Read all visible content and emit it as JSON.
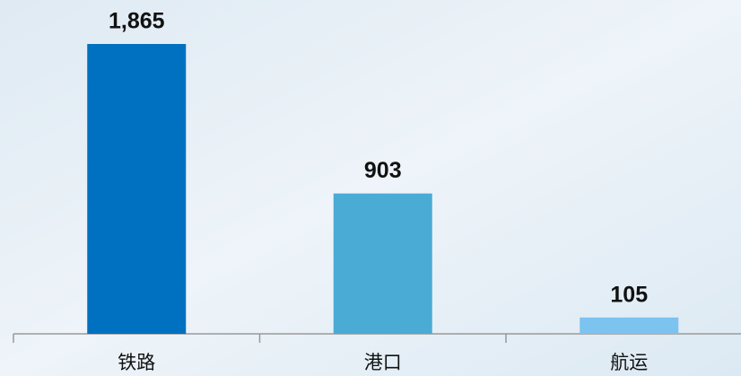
{
  "chart_data": {
    "type": "bar",
    "categories": [
      "铁路",
      "港口",
      "航运"
    ],
    "values": [
      1865,
      903,
      105
    ],
    "value_labels": [
      "1,865",
      "903",
      "105"
    ],
    "colors": [
      "#0070c0",
      "#4aabd5",
      "#7cc3f0"
    ]
  }
}
